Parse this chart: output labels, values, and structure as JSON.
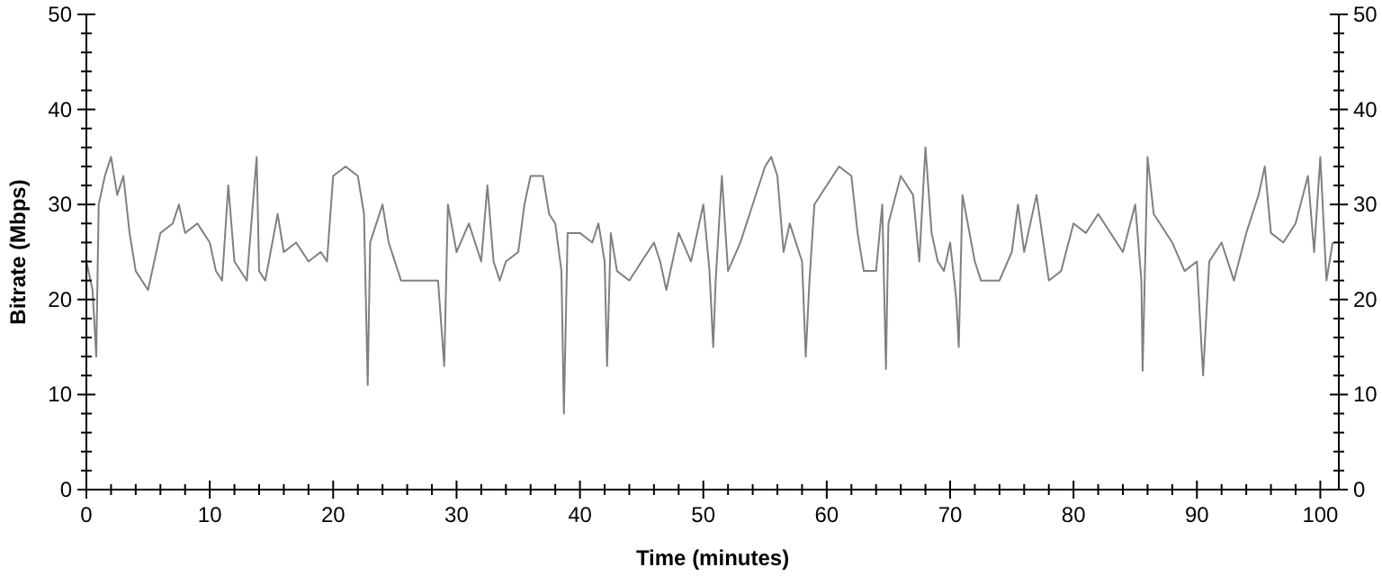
{
  "chart_data": {
    "type": "line",
    "xlabel": "Time (minutes)",
    "ylabel": "Bitrate (Mbps)",
    "xlim": [
      0,
      101.5
    ],
    "ylim": [
      0,
      50
    ],
    "y2lim": [
      0,
      50
    ],
    "xticks": [
      0,
      {
        "value": 2,
        "label": null
      },
      {
        "value": 4,
        "label": null
      },
      {
        "value": 6,
        "label": null
      },
      {
        "value": 8,
        "label": null
      },
      10,
      {
        "value": 12,
        "label": null
      },
      {
        "value": 14,
        "label": null
      },
      {
        "value": 16,
        "label": null
      },
      {
        "value": 18,
        "label": null
      },
      20,
      {
        "value": 22,
        "label": null
      },
      {
        "value": 24,
        "label": null
      },
      {
        "value": 26,
        "label": null
      },
      {
        "value": 28,
        "label": null
      },
      30,
      {
        "value": 32,
        "label": null
      },
      {
        "value": 34,
        "label": null
      },
      {
        "value": 36,
        "label": null
      },
      {
        "value": 38,
        "label": null
      },
      40,
      {
        "value": 42,
        "label": null
      },
      {
        "value": 44,
        "label": null
      },
      {
        "value": 46,
        "label": null
      },
      {
        "value": 48,
        "label": null
      },
      50,
      {
        "value": 52,
        "label": null
      },
      {
        "value": 54,
        "label": null
      },
      {
        "value": 56,
        "label": null
      },
      {
        "value": 58,
        "label": null
      },
      60,
      {
        "value": 62,
        "label": null
      },
      {
        "value": 64,
        "label": null
      },
      {
        "value": 66,
        "label": null
      },
      {
        "value": 68,
        "label": null
      },
      70,
      {
        "value": 72,
        "label": null
      },
      {
        "value": 74,
        "label": null
      },
      {
        "value": 76,
        "label": null
      },
      {
        "value": 78,
        "label": null
      },
      80,
      {
        "value": 82,
        "label": null
      },
      {
        "value": 84,
        "label": null
      },
      {
        "value": 86,
        "label": null
      },
      {
        "value": 88,
        "label": null
      },
      90,
      {
        "value": 92,
        "label": null
      },
      {
        "value": 94,
        "label": null
      },
      {
        "value": 96,
        "label": null
      },
      {
        "value": 98,
        "label": null
      },
      100
    ],
    "yticks": [
      0,
      {
        "value": 2,
        "label": null
      },
      {
        "value": 4,
        "label": null
      },
      {
        "value": 6,
        "label": null
      },
      {
        "value": 8,
        "label": null
      },
      10,
      {
        "value": 12,
        "label": null
      },
      {
        "value": 14,
        "label": null
      },
      {
        "value": 16,
        "label": null
      },
      {
        "value": 18,
        "label": null
      },
      20,
      {
        "value": 22,
        "label": null
      },
      {
        "value": 24,
        "label": null
      },
      {
        "value": 26,
        "label": null
      },
      {
        "value": 28,
        "label": null
      },
      30,
      {
        "value": 32,
        "label": null
      },
      {
        "value": 34,
        "label": null
      },
      {
        "value": 36,
        "label": null
      },
      {
        "value": 38,
        "label": null
      },
      40,
      {
        "value": 42,
        "label": null
      },
      {
        "value": 44,
        "label": null
      },
      {
        "value": 46,
        "label": null
      },
      {
        "value": 48,
        "label": null
      },
      50
    ],
    "y2ticks": [
      0,
      {
        "value": 2,
        "label": null
      },
      {
        "value": 4,
        "label": null
      },
      {
        "value": 6,
        "label": null
      },
      {
        "value": 8,
        "label": null
      },
      10,
      {
        "value": 12,
        "label": null
      },
      {
        "value": 14,
        "label": null
      },
      {
        "value": 16,
        "label": null
      },
      {
        "value": 18,
        "label": null
      },
      20,
      {
        "value": 22,
        "label": null
      },
      {
        "value": 24,
        "label": null
      },
      {
        "value": 26,
        "label": null
      },
      {
        "value": 28,
        "label": null
      },
      30,
      {
        "value": 32,
        "label": null
      },
      {
        "value": 34,
        "label": null
      },
      {
        "value": 36,
        "label": null
      },
      {
        "value": 38,
        "label": null
      },
      40,
      {
        "value": 42,
        "label": null
      },
      {
        "value": 44,
        "label": null
      },
      {
        "value": 46,
        "label": null
      },
      {
        "value": 48,
        "label": null
      },
      50
    ],
    "grid": false,
    "marker": "none",
    "line_style": "solid",
    "series": [
      {
        "color": "#808080",
        "x": [
          0,
          0.5,
          0.8,
          1,
          1.5,
          2,
          2.5,
          3,
          3.5,
          4,
          5,
          5.5,
          6,
          7,
          7.5,
          8,
          9,
          10,
          10.5,
          11,
          11.5,
          12,
          13,
          13.8,
          14,
          14.5,
          15.5,
          16,
          17,
          18,
          19,
          19.5,
          20,
          21,
          22,
          22.5,
          22.8,
          23,
          24,
          24.5,
          25.5,
          26,
          27,
          28,
          28.5,
          29,
          29.3,
          30,
          31,
          32,
          32.5,
          33,
          33.5,
          34,
          35,
          35.5,
          36,
          37,
          37.5,
          38,
          38.5,
          38.7,
          39,
          40,
          41,
          41.5,
          42,
          42.2,
          42.5,
          43,
          44,
          45,
          46,
          46.5,
          47,
          48,
          49,
          50,
          50.5,
          50.8,
          51,
          51.5,
          52,
          53,
          54,
          55,
          55.5,
          56,
          56.5,
          57,
          58,
          58.3,
          58.6,
          59,
          60,
          61,
          62,
          62.5,
          63,
          64,
          64.5,
          64.8,
          65,
          66,
          67,
          67.5,
          68,
          68.5,
          69,
          69.5,
          70,
          70.5,
          70.7,
          71,
          72,
          72.5,
          73,
          74,
          75,
          75.5,
          76,
          77,
          78,
          79,
          80,
          81,
          82,
          83,
          84,
          85,
          85.5,
          85.6,
          86,
          86.5,
          87,
          88,
          89,
          90,
          90.5,
          91,
          92,
          93,
          94,
          95,
          95.5,
          96,
          97,
          98,
          99,
          99.5,
          100,
          100.5,
          101
        ],
        "values": [
          24,
          21,
          14,
          30,
          33,
          35,
          31,
          33,
          27,
          23,
          21,
          24,
          27,
          28,
          30,
          27,
          28,
          26,
          23,
          22,
          32,
          24,
          22,
          35,
          23,
          22,
          29,
          25,
          26,
          24,
          25,
          24,
          33,
          34,
          33,
          29,
          11,
          26,
          30,
          26,
          22,
          22,
          22,
          22,
          22,
          13,
          30,
          25,
          28,
          24,
          32,
          24,
          22,
          24,
          25,
          30,
          33,
          33,
          29,
          28,
          23,
          8,
          27,
          27,
          26,
          28,
          24,
          13,
          27,
          23,
          22,
          24,
          26,
          24,
          21,
          27,
          24,
          30,
          23,
          15,
          22,
          33,
          23,
          26,
          30,
          34,
          35,
          33,
          25,
          28,
          24,
          14,
          22,
          30,
          32,
          34,
          33,
          27,
          23,
          23,
          30,
          12.7,
          28,
          33,
          31,
          24,
          36,
          27,
          24,
          23,
          26,
          20,
          15,
          31,
          24,
          22,
          22,
          22,
          25,
          30,
          25,
          31,
          22,
          23,
          28,
          27,
          29,
          27,
          25,
          30,
          22,
          12.5,
          35,
          29,
          28,
          26,
          23,
          24,
          12,
          24,
          26,
          22,
          27,
          31,
          34,
          27,
          26,
          28,
          33,
          25,
          35,
          22,
          26
        ]
      }
    ]
  }
}
